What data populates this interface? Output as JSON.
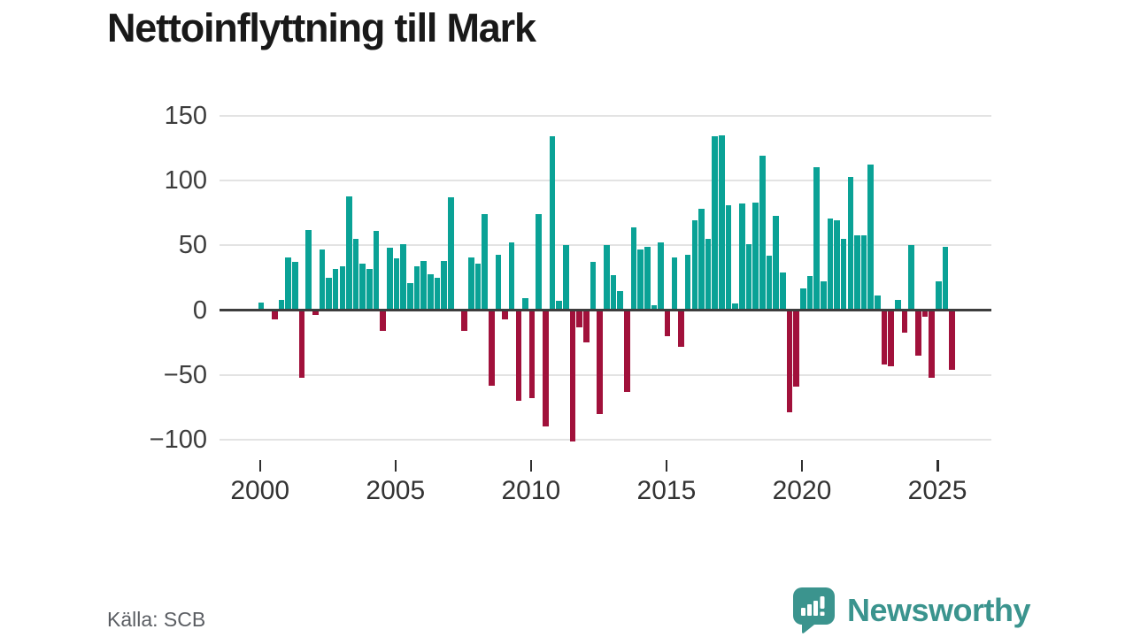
{
  "title": "Nettoinflyttning till Mark",
  "source": "Källa: SCB",
  "branding": {
    "name": "Newsworthy",
    "logo_color": "#3b948e"
  },
  "colors": {
    "positive": "#0aa296",
    "negative": "#a1113b",
    "axis": "#3d3d3d",
    "grid": "#e3e3e3",
    "tick_label": "#3c3c3c",
    "source_text": "#5b5e63"
  },
  "chart_data": {
    "type": "bar",
    "title": "Nettoinflyttning till Mark",
    "frequency": "quarterly",
    "start_year": 2000,
    "start_quarter": 1,
    "values": [
      6,
      0,
      -7,
      8,
      41,
      37,
      -52,
      62,
      -4,
      47,
      25,
      32,
      34,
      88,
      55,
      36,
      32,
      61,
      -16,
      48,
      40,
      51,
      21,
      34,
      38,
      28,
      25,
      38,
      87,
      0,
      -16,
      41,
      36,
      74,
      -58,
      43,
      -7,
      52,
      -70,
      9,
      -68,
      74,
      -90,
      134,
      7,
      50,
      -101,
      -13,
      -25,
      37,
      -80,
      50,
      27,
      15,
      -63,
      64,
      47,
      49,
      4,
      52,
      -20,
      41,
      -28,
      43,
      69,
      78,
      55,
      134,
      135,
      81,
      5,
      82,
      51,
      83,
      119,
      42,
      73,
      29,
      -79,
      -59,
      17,
      26,
      110,
      22,
      71,
      69,
      55,
      103,
      58,
      58,
      112,
      11,
      -42,
      -43,
      8,
      -17,
      50,
      -35,
      -5,
      -52,
      22,
      49,
      -46
    ],
    "x_tick_years": [
      2000,
      2005,
      2010,
      2015,
      2020,
      2025
    ],
    "y_ticks": [
      150,
      100,
      50,
      0,
      -50,
      -100
    ],
    "ylim": [
      -110,
      155
    ],
    "xlabel": "",
    "ylabel": "",
    "grid": true,
    "legend": "none"
  }
}
